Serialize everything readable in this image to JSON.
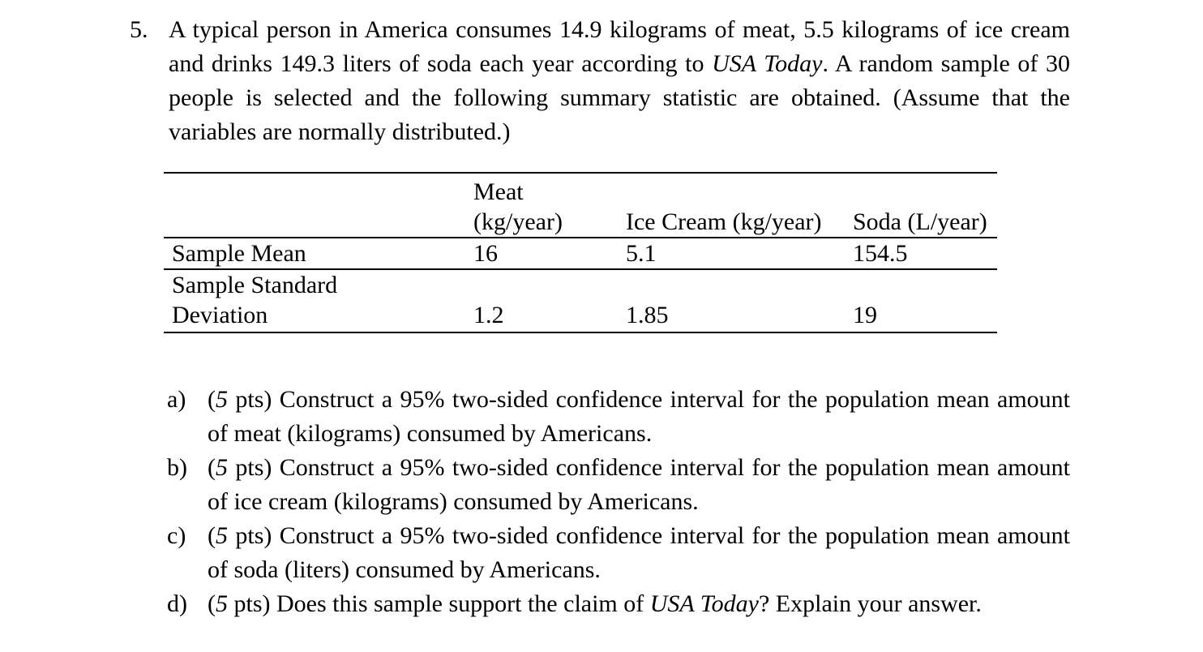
{
  "problem": {
    "number": "5.",
    "text_1": "A typical person in America consumes 14.9 kilograms of meat, 5.5 kilograms of ice cream and drinks 149.3 liters of soda each year according to ",
    "source": "USA Today",
    "text_2": ". A random sample of 30 people is selected and the following summary statistic are obtained. (Assume that the variables are normally distributed.)"
  },
  "table": {
    "headers": {
      "meat_line1": "Meat",
      "meat_line2": "(kg/year)",
      "ice_cream": "Ice Cream (kg/year)",
      "soda": "Soda (L/year)"
    },
    "rows": [
      {
        "label_line1": "Sample Mean",
        "label_line2": "",
        "meat": "16",
        "ice_cream": "5.1",
        "soda": "154.5"
      },
      {
        "label_line1": "Sample Standard",
        "label_line2": "Deviation",
        "meat": "1.2",
        "ice_cream": "1.85",
        "soda": "19"
      }
    ]
  },
  "parts": [
    {
      "label": "a)",
      "pts": "5",
      "text": " pts) Construct a 95% two-sided confidence interval for the population mean amount of meat (kilograms) consumed by Americans."
    },
    {
      "label": "b)",
      "pts": "5",
      "text": " pts) Construct a 95% two-sided confidence interval for the population mean amount of ice cream (kilograms) consumed by Americans."
    },
    {
      "label": "c)",
      "pts": "5",
      "text": " pts) Construct a 95% two-sided confidence interval for the population mean amount of soda (liters) consumed by Americans."
    },
    {
      "label": "d)",
      "pts": "5",
      "text_1": " pts) Does this sample support the claim of ",
      "source": "USA Today",
      "text_2": "? Explain your answer."
    }
  ]
}
